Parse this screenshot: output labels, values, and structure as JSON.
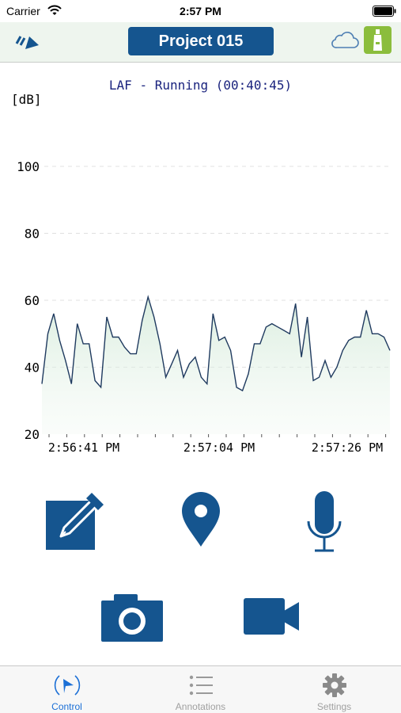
{
  "status_bar": {
    "carrier": "Carrier",
    "time": "2:57 PM"
  },
  "nav": {
    "project_title": "Project 015"
  },
  "chart_data": {
    "type": "area",
    "title": "LAF - Running (00:40:45)",
    "ylabel": "[dB]",
    "ylim": [
      20,
      110
    ],
    "yticks": [
      20,
      40,
      60,
      80,
      100
    ],
    "xtick_labels": [
      "2:56:41 PM",
      "2:57:04 PM",
      "2:57:26 PM"
    ],
    "grid": true,
    "color": "#1f3a5f",
    "fill_color": "#d8ecdd",
    "series": [
      {
        "values": [
          35,
          50,
          56,
          48,
          42,
          35,
          53,
          47,
          47,
          36,
          34,
          55,
          49,
          49,
          46,
          44,
          44,
          54,
          61,
          55,
          47,
          37,
          41,
          45,
          37,
          41,
          43,
          37,
          35,
          56,
          48,
          49,
          45,
          34,
          33,
          38,
          47,
          47,
          52,
          53,
          52,
          51,
          50,
          59,
          43,
          55,
          36,
          37,
          42,
          37,
          40,
          45,
          48,
          49,
          49,
          57,
          50,
          50,
          49,
          45
        ]
      }
    ]
  },
  "actions": {
    "annotation": "annotation-icon",
    "location": "location-pin-icon",
    "microphone": "microphone-icon",
    "camera": "camera-icon",
    "video": "video-camera-icon"
  },
  "tabs": [
    {
      "label": "Control",
      "icon": "control-icon",
      "active": true
    },
    {
      "label": "Annotations",
      "icon": "list-icon",
      "active": false
    },
    {
      "label": "Settings",
      "icon": "gear-icon",
      "active": false
    }
  ],
  "colors": {
    "accent": "#15558f",
    "nav_bg": "#eef5ee",
    "meter_green": "#8bbd3c",
    "tab_active": "#1b6fd6"
  }
}
